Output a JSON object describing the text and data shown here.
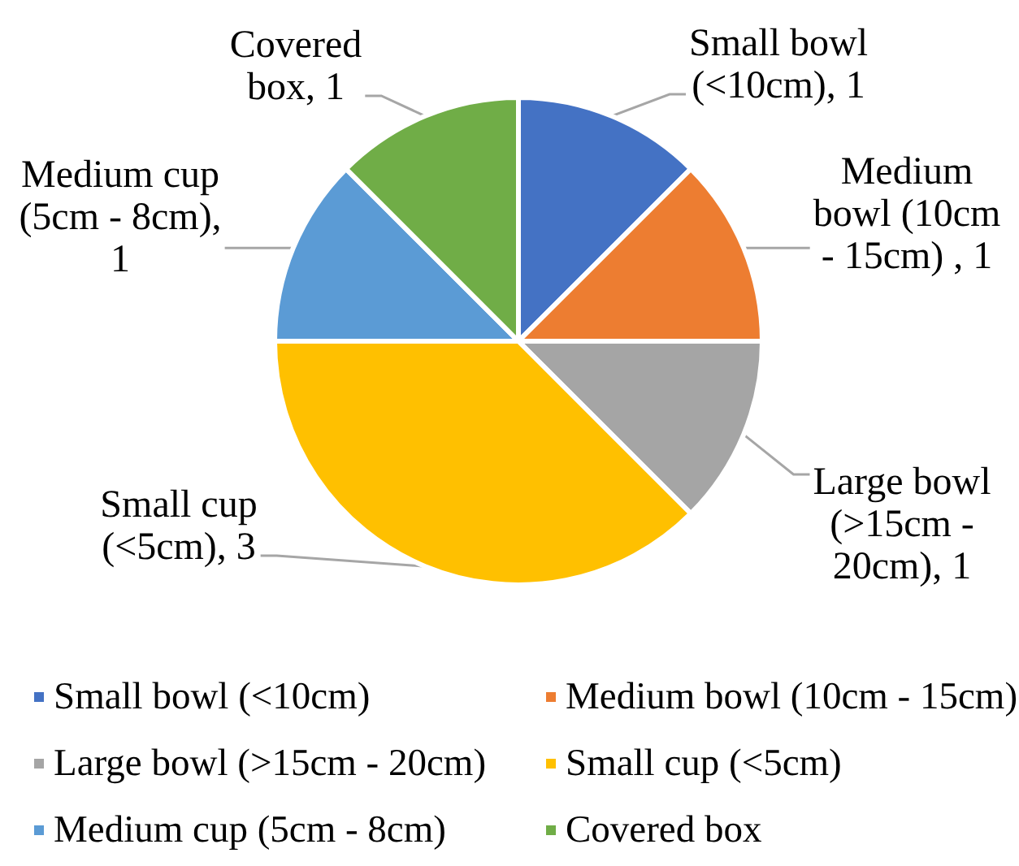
{
  "chart_data": {
    "type": "pie",
    "categories": [
      "Small bowl (<10cm)",
      "Medium bowl (10cm - 15cm)",
      "Large bowl (>15cm - 20cm)",
      "Small cup (<5cm)",
      "Medium cup (5cm - 8cm)",
      "Covered box"
    ],
    "values": [
      1,
      1,
      1,
      3,
      1,
      1
    ],
    "value_labels": [
      "Small bowl (<10cm), 1",
      "Medium bowl (10cm - 15cm) , 1",
      "Large bowl (>15cm - 20cm), 1",
      "Small cup (<5cm), 3",
      "Medium cup (5cm - 8cm), 1",
      "Covered box, 1"
    ],
    "colors": [
      "#4472c4",
      "#ed7d31",
      "#a5a5a5",
      "#ffc000",
      "#5b9bd5",
      "#70ad47"
    ],
    "legend": "bottom"
  }
}
